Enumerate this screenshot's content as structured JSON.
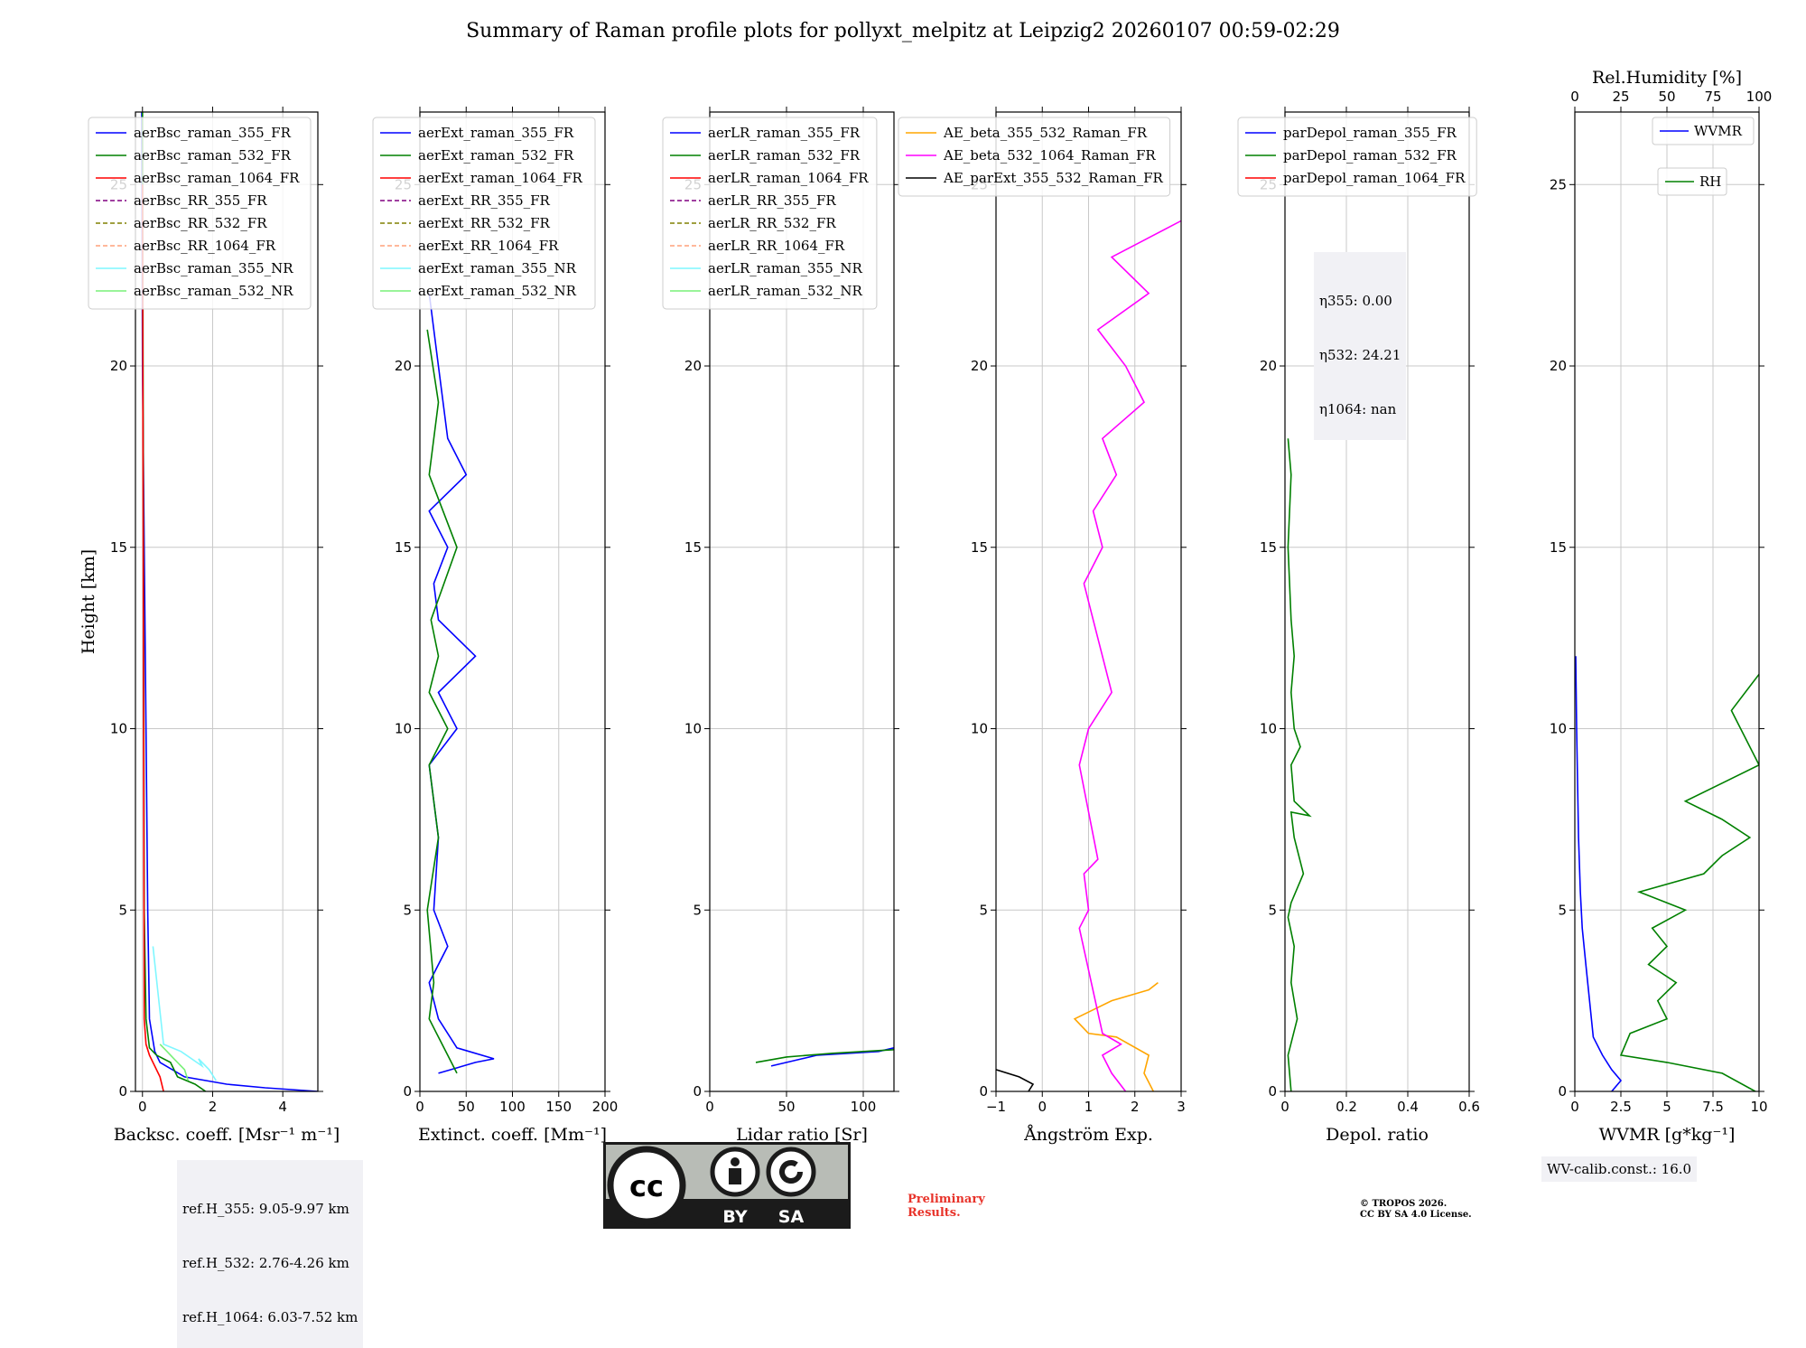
{
  "title": "Summary of Raman profile plots for pollyxt_melpitz at Leipzig2 20260107 00:59-02:29",
  "colors": {
    "blue": "#0000ff",
    "green": "#008000",
    "red": "#ff0000",
    "purple": "#800080",
    "olive": "#808000",
    "salmon": "#ffa07a",
    "cyan": "#7ff7ff",
    "lightgreen": "#78f078",
    "orange": "#ffa500",
    "magenta": "#ff00ff",
    "black": "#000000"
  },
  "ref_box": [
    "ref.H_355: 9.05-9.97 km",
    "ref.H_532: 2.76-4.26 km",
    "ref.H_1064: 6.03-7.52 km"
  ],
  "eta_box": [
    "η355: 0.00",
    "η532: 24.21",
    "η1064: nan"
  ],
  "wv_calib": "WV-calib.const.: 16.0",
  "preliminary": [
    "Preliminary",
    "Results."
  ],
  "copyright": [
    "© TROPOS 2026.",
    "CC BY SA 4.0 License."
  ],
  "license_badge": {
    "cc": "cc",
    "by": "BY",
    "sa": "SA"
  },
  "chart_data": [
    {
      "type": "line",
      "xlabel": "Backsc. coeff. [Msr⁻¹ m⁻¹]",
      "ylabel": "Height [km]",
      "xlim": [
        -0.2,
        5
      ],
      "ylim": [
        0,
        27
      ],
      "xticks": [
        0,
        2,
        4
      ],
      "yticks": [
        0,
        5,
        10,
        15,
        20,
        25
      ],
      "legend": [
        {
          "name": "aerBsc_raman_355_FR",
          "color": "blue",
          "dash": false
        },
        {
          "name": "aerBsc_raman_532_FR",
          "color": "green",
          "dash": false
        },
        {
          "name": "aerBsc_raman_1064_FR",
          "color": "red",
          "dash": false
        },
        {
          "name": "aerBsc_RR_355_FR",
          "color": "purple",
          "dash": true
        },
        {
          "name": "aerBsc_RR_532_FR",
          "color": "olive",
          "dash": true
        },
        {
          "name": "aerBsc_RR_1064_FR",
          "color": "salmon",
          "dash": true
        },
        {
          "name": "aerBsc_raman_355_NR",
          "color": "cyan",
          "dash": false
        },
        {
          "name": "aerBsc_raman_532_NR",
          "color": "lightgreen",
          "dash": false
        }
      ],
      "series": [
        {
          "name": "aerBsc_raman_355_FR",
          "color": "blue",
          "x": [
            5,
            3.5,
            2.4,
            1.2,
            0.5,
            0.35,
            0.2,
            0.15,
            0.1,
            0.05,
            0.0,
            -0.02
          ],
          "y": [
            0,
            0.1,
            0.2,
            0.4,
            0.8,
            1.1,
            2,
            5,
            10,
            15,
            20,
            27
          ]
        },
        {
          "name": "aerBsc_raman_532_FR",
          "color": "green",
          "x": [
            1.8,
            1.5,
            1.0,
            0.8,
            0.4,
            0.2,
            0.1,
            0.05,
            0.0
          ],
          "y": [
            0,
            0.2,
            0.4,
            0.8,
            1.0,
            1.2,
            2,
            5,
            27
          ]
        },
        {
          "name": "aerBsc_raman_1064_FR",
          "color": "red",
          "x": [
            0.6,
            0.5,
            0.3,
            0.2,
            0.1,
            0.05,
            0.0
          ],
          "y": [
            0,
            0.4,
            0.8,
            1.0,
            1.3,
            2,
            25
          ]
        },
        {
          "name": "aerBsc_raman_355_NR",
          "color": "cyan",
          "x": [
            2.1,
            1.9,
            1.6,
            1.7,
            1.1,
            0.6,
            0.3
          ],
          "y": [
            0.3,
            0.6,
            0.9,
            0.7,
            1.1,
            1.3,
            4
          ]
        },
        {
          "name": "aerBsc_raman_532_NR",
          "color": "lightgreen",
          "x": [
            1.3,
            1.2,
            0.9,
            0.7,
            0.5
          ],
          "y": [
            0.3,
            0.6,
            0.9,
            1.1,
            1.3
          ]
        }
      ]
    },
    {
      "type": "line",
      "xlabel": "Extinct. coeff. [Mm⁻¹]",
      "xlim": [
        0,
        200
      ],
      "ylim": [
        0,
        27
      ],
      "xticks": [
        0,
        50,
        100,
        150,
        200
      ],
      "yticks": [
        0,
        5,
        10,
        15,
        20,
        25
      ],
      "legend": [
        {
          "name": "aerExt_raman_355_FR",
          "color": "blue",
          "dash": false
        },
        {
          "name": "aerExt_raman_532_FR",
          "color": "green",
          "dash": false
        },
        {
          "name": "aerExt_raman_1064_FR",
          "color": "red",
          "dash": false
        },
        {
          "name": "aerExt_RR_355_FR",
          "color": "purple",
          "dash": true
        },
        {
          "name": "aerExt_RR_532_FR",
          "color": "olive",
          "dash": true
        },
        {
          "name": "aerExt_RR_1064_FR",
          "color": "salmon",
          "dash": true
        },
        {
          "name": "aerExt_raman_355_NR",
          "color": "cyan",
          "dash": false
        },
        {
          "name": "aerExt_raman_532_NR",
          "color": "lightgreen",
          "dash": false
        }
      ],
      "series": [
        {
          "name": "aerExt_raman_355_FR",
          "color": "blue",
          "x": [
            20,
            60,
            80,
            40,
            20,
            10,
            30,
            15,
            20,
            10,
            40,
            20,
            60,
            20,
            15,
            30,
            10,
            50,
            30,
            20,
            10
          ],
          "y": [
            0.5,
            0.8,
            0.9,
            1.2,
            2,
            3,
            4,
            5,
            7,
            9,
            10,
            11,
            12,
            13,
            14,
            15,
            16,
            17,
            18,
            20,
            22
          ]
        },
        {
          "name": "aerExt_raman_532_FR",
          "color": "green",
          "x": [
            40,
            30,
            20,
            10,
            15,
            8,
            20,
            10,
            30,
            10,
            20,
            12,
            40,
            10,
            20,
            8
          ],
          "y": [
            0.5,
            1,
            1.5,
            2,
            3,
            5,
            7,
            9,
            10,
            11,
            12,
            13,
            15,
            17,
            19,
            21
          ]
        }
      ]
    },
    {
      "type": "line",
      "xlabel": "Lidar ratio [Sr]",
      "xlim": [
        0,
        120
      ],
      "ylim": [
        0,
        27
      ],
      "xticks": [
        0,
        50,
        100
      ],
      "yticks": [
        0,
        5,
        10,
        15,
        20,
        25
      ],
      "legend": [
        {
          "name": "aerLR_raman_355_FR",
          "color": "blue",
          "dash": false
        },
        {
          "name": "aerLR_raman_532_FR",
          "color": "green",
          "dash": false
        },
        {
          "name": "aerLR_raman_1064_FR",
          "color": "red",
          "dash": false
        },
        {
          "name": "aerLR_RR_355_FR",
          "color": "purple",
          "dash": true
        },
        {
          "name": "aerLR_RR_532_FR",
          "color": "olive",
          "dash": true
        },
        {
          "name": "aerLR_RR_1064_FR",
          "color": "salmon",
          "dash": true
        },
        {
          "name": "aerLR_raman_355_NR",
          "color": "cyan",
          "dash": false
        },
        {
          "name": "aerLR_raman_532_NR",
          "color": "lightgreen",
          "dash": false
        }
      ],
      "series": [
        {
          "name": "aerLR_raman_355_FR",
          "color": "blue",
          "x": [
            40,
            60,
            70,
            110,
            120
          ],
          "y": [
            0.7,
            0.9,
            1.0,
            1.1,
            1.2
          ]
        },
        {
          "name": "aerLR_raman_532_FR",
          "color": "green",
          "x": [
            30,
            50,
            80,
            120
          ],
          "y": [
            0.8,
            0.95,
            1.05,
            1.15
          ]
        }
      ]
    },
    {
      "type": "line",
      "xlabel": "Ångström Exp.",
      "xlim": [
        -1,
        3
      ],
      "ylim": [
        0,
        27
      ],
      "xticks": [
        -1,
        0,
        1,
        2,
        3
      ],
      "yticks": [
        0,
        5,
        10,
        15,
        20,
        25
      ],
      "legend": [
        {
          "name": "AE_beta_355_532_Raman_FR",
          "color": "orange",
          "dash": false
        },
        {
          "name": "AE_beta_532_1064_Raman_FR",
          "color": "magenta",
          "dash": false
        },
        {
          "name": "AE_parExt_355_532_Raman_FR",
          "color": "black",
          "dash": false
        }
      ],
      "series": [
        {
          "name": "AE_beta_355_532_Raman_FR",
          "color": "orange",
          "x": [
            2.4,
            2.2,
            2.3,
            1.6,
            1.0,
            0.7,
            1.5,
            2.3,
            2.5
          ],
          "y": [
            0,
            0.5,
            1,
            1.5,
            1.6,
            2.0,
            2.5,
            2.8,
            3.0
          ]
        },
        {
          "name": "AE_beta_532_1064_Raman_FR",
          "color": "magenta",
          "x": [
            1.8,
            1.5,
            1.3,
            1.7,
            1.3,
            0.8,
            1.0,
            0.9,
            1.2,
            0.8,
            1.0,
            1.5,
            1.1,
            0.9,
            1.3,
            1.1,
            1.6,
            1.3,
            2.2,
            1.8,
            1.2,
            2.3,
            1.5,
            3.0
          ],
          "y": [
            0,
            0.5,
            1,
            1.3,
            1.6,
            4.5,
            5.0,
            6.0,
            6.4,
            9,
            10,
            11,
            13,
            14,
            15,
            16,
            17,
            18,
            19,
            20,
            21,
            22,
            23,
            24
          ]
        },
        {
          "name": "AE_parExt_355_532_Raman_FR",
          "color": "black",
          "x": [
            -1,
            -0.5,
            -0.2,
            -0.3
          ],
          "y": [
            0.6,
            0.4,
            0.2,
            0
          ]
        }
      ]
    },
    {
      "type": "line",
      "xlabel": "Depol. ratio",
      "xlim": [
        0,
        0.6
      ],
      "ylim": [
        0,
        27
      ],
      "xticks": [
        0.0,
        0.2,
        0.4,
        0.6
      ],
      "yticks": [
        0,
        5,
        10,
        15,
        20,
        25
      ],
      "legend": [
        {
          "name": "parDepol_raman_355_FR",
          "color": "blue",
          "dash": false
        },
        {
          "name": "parDepol_raman_532_FR",
          "color": "green",
          "dash": false
        },
        {
          "name": "parDepol_raman_1064_FR",
          "color": "red",
          "dash": false
        }
      ],
      "series": [
        {
          "name": "parDepol_raman_532_FR",
          "color": "green",
          "x": [
            0.02,
            0.01,
            0.04,
            0.02,
            0.03,
            0.01,
            0.02,
            0.06,
            0.03,
            0.02,
            0.08,
            0.03,
            0.02,
            0.05,
            0.03,
            0.02,
            0.03,
            0.02,
            0.01,
            0.02,
            0.01
          ],
          "y": [
            0,
            1,
            2,
            3,
            4,
            4.8,
            5.2,
            6,
            7,
            7.7,
            7.6,
            8,
            9,
            9.5,
            10,
            11,
            12,
            13,
            15,
            17,
            18
          ]
        }
      ]
    },
    {
      "type": "line",
      "xlabel": "WVMR [g*kg⁻¹]",
      "xlim": [
        0,
        10
      ],
      "ylim": [
        0,
        27
      ],
      "xticks": [
        0.0,
        2.5,
        5.0,
        7.5,
        10.0
      ],
      "yticks": [
        0,
        5,
        10,
        15,
        20,
        25
      ],
      "top_axis": {
        "label": "Rel.Humidity [%]",
        "ticks": [
          0,
          25,
          50,
          75,
          100
        ],
        "lim": [
          0,
          100
        ]
      },
      "legend": [
        {
          "name": "WVMR",
          "color": "blue",
          "dash": false
        },
        {
          "name": "RH",
          "color": "green",
          "dash": false
        }
      ],
      "series": [
        {
          "name": "WVMR",
          "color": "blue",
          "x": [
            2.0,
            2.5,
            2.0,
            1.5,
            1.0,
            0.8,
            0.6,
            0.4,
            0.3,
            0.2,
            0.1,
            0.05
          ],
          "y": [
            0,
            0.3,
            0.6,
            1.0,
            1.5,
            2.5,
            3.5,
            4.5,
            5.5,
            7,
            10,
            12
          ]
        },
        {
          "name": "RH",
          "color": "green",
          "x": [
            9.8,
            8.0,
            5.0,
            2.5,
            3.0,
            5.0,
            4.5,
            5.5,
            4.0,
            5.0,
            4.2,
            6.0,
            3.5,
            7.0,
            8.0,
            9.5,
            8.0,
            6.0,
            10,
            9.0,
            8.5,
            10
          ],
          "y": [
            0,
            0.5,
            0.8,
            1.0,
            1.6,
            2.0,
            2.5,
            3.0,
            3.5,
            4.0,
            4.5,
            5.0,
            5.5,
            6.0,
            6.5,
            7.0,
            7.5,
            8.0,
            9.0,
            10.0,
            10.5,
            11.5
          ]
        }
      ]
    }
  ]
}
